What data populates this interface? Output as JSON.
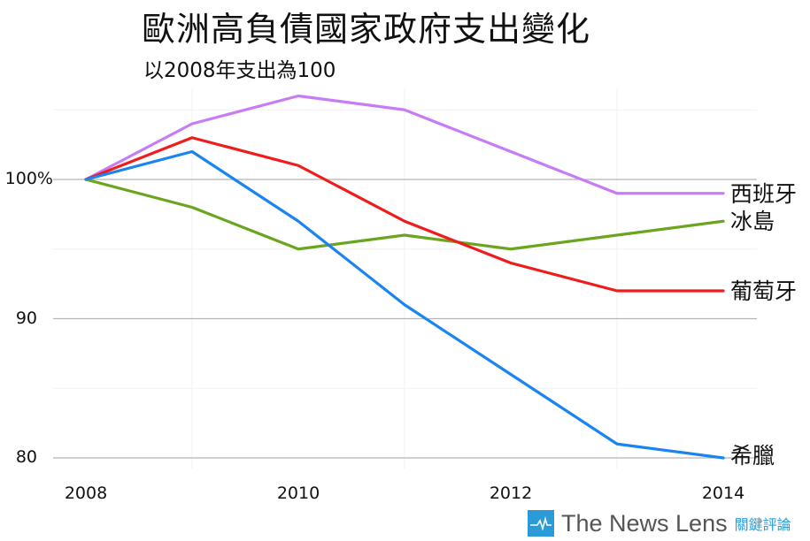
{
  "header": {
    "title": "歐洲高負債國家政府支出變化",
    "subtitle": "以2008年支出為100"
  },
  "axes": {
    "y_ticks": [
      {
        "label": "100%",
        "value": 100
      },
      {
        "label": "90",
        "value": 90
      },
      {
        "label": "80",
        "value": 80
      }
    ],
    "x_ticks": [
      "2008",
      "2010",
      "2012",
      "2014"
    ]
  },
  "series_labels": {
    "spain": "西班牙",
    "iceland": "冰島",
    "portugal": "葡萄牙",
    "greece": "希臘"
  },
  "logo": {
    "text": "The News Lens",
    "zh": "關鍵評論",
    "color": "#2b9bd8"
  },
  "chart_data": {
    "type": "line",
    "title": "歐洲高負債國家政府支出變化",
    "subtitle": "以2008年支出為100",
    "xlabel": "",
    "ylabel": "",
    "x": [
      2008,
      2009,
      2010,
      2011,
      2012,
      2013,
      2014
    ],
    "x_tick_labels": [
      "2008",
      "2010",
      "2012",
      "2014"
    ],
    "y_tick_labels": [
      "80",
      "90",
      "100%"
    ],
    "ylim": [
      79,
      107
    ],
    "grid": true,
    "legend": "direct labels at line ends (right)",
    "series": [
      {
        "name": "西班牙",
        "color": "#c77cf5",
        "values": [
          100,
          104,
          106,
          105,
          102,
          99,
          99
        ]
      },
      {
        "name": "冰島",
        "color": "#6aa51e",
        "values": [
          100,
          98,
          95,
          96,
          95,
          96,
          97
        ]
      },
      {
        "name": "葡萄牙",
        "color": "#f01c1c",
        "values": [
          100,
          103,
          101,
          97,
          94,
          92,
          92
        ]
      },
      {
        "name": "希臘",
        "color": "#1a84f0",
        "values": [
          100,
          102,
          97,
          91,
          86,
          81,
          80
        ]
      }
    ]
  }
}
